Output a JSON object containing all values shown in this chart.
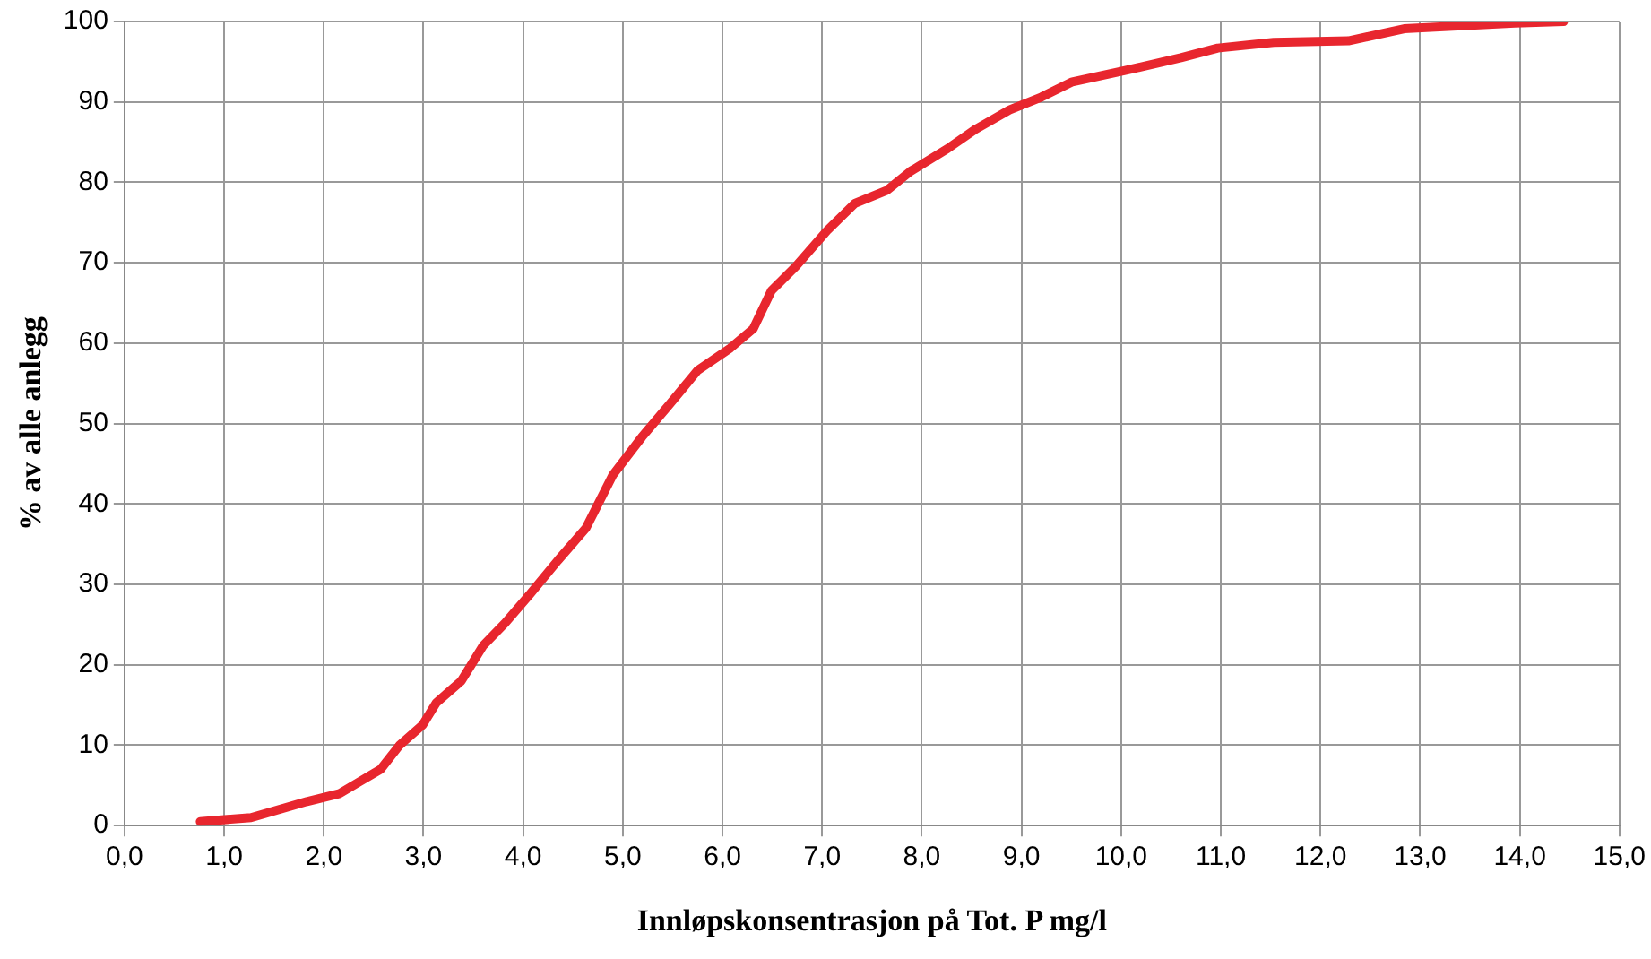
{
  "chart_data": {
    "type": "line",
    "xlabel": "Innløpskonsentrasjon på Tot. P mg/l",
    "ylabel": "% av alle anlegg",
    "xlim": [
      0,
      15
    ],
    "ylim": [
      0,
      100
    ],
    "xticks": [
      {
        "value": 0,
        "label": "0,0"
      },
      {
        "value": 1,
        "label": "1,0"
      },
      {
        "value": 2,
        "label": "2,0"
      },
      {
        "value": 3,
        "label": "3,0"
      },
      {
        "value": 4,
        "label": "4,0"
      },
      {
        "value": 5,
        "label": "5,0"
      },
      {
        "value": 6,
        "label": "6,0"
      },
      {
        "value": 7,
        "label": "7,0"
      },
      {
        "value": 8,
        "label": "8,0"
      },
      {
        "value": 9,
        "label": "9,0"
      },
      {
        "value": 10,
        "label": "10,0"
      },
      {
        "value": 11,
        "label": "11,0"
      },
      {
        "value": 12,
        "label": "12,0"
      },
      {
        "value": 13,
        "label": "13,0"
      },
      {
        "value": 14,
        "label": "14,0"
      },
      {
        "value": 15,
        "label": "15,0"
      }
    ],
    "yticks": [
      0,
      10,
      20,
      30,
      40,
      50,
      60,
      70,
      80,
      90,
      100
    ],
    "grid": true,
    "legend": false,
    "marker": "none",
    "line_style": "solid",
    "series": [
      {
        "color": "#e8262e",
        "x": [
          0.76,
          1.27,
          1.55,
          1.83,
          2.16,
          2.35,
          2.57,
          2.76,
          2.99,
          3.13,
          3.38,
          3.6,
          3.82,
          4.07,
          4.35,
          4.63,
          4.9,
          5.19,
          5.47,
          5.75,
          6.08,
          6.31,
          6.49,
          6.74,
          7.05,
          7.33,
          7.65,
          7.89,
          8.26,
          8.54,
          8.88,
          9.2,
          9.51,
          10.04,
          10.6,
          10.97,
          11.53,
          12.28,
          12.84,
          13.95,
          14.44
        ],
        "values": [
          0.5,
          1,
          2,
          3,
          4,
          5.4,
          7,
          10,
          12.5,
          15.3,
          18,
          22.4,
          25.2,
          28.8,
          33,
          37,
          43.6,
          48.3,
          52.4,
          56.6,
          59.4,
          61.8,
          66.5,
          69.6,
          74,
          77.4,
          79,
          81.4,
          84.2,
          86.6,
          89,
          90.6,
          92.5,
          93.9,
          95.5,
          96.7,
          97.4,
          97.6,
          99.1,
          99.8,
          100
        ]
      }
    ]
  }
}
